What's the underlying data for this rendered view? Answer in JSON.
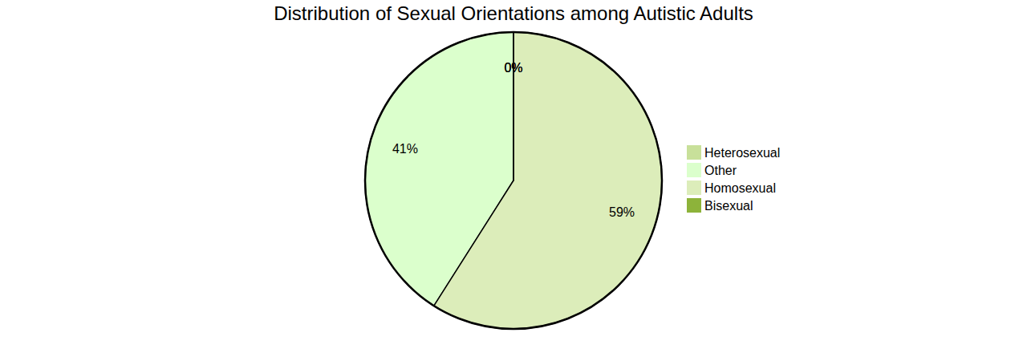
{
  "chart_data": {
    "type": "pie",
    "title": "Distribution of Sexual Orientations among Autistic Adults",
    "categories": [
      "Heterosexual",
      "Other",
      "Homosexual",
      "Bisexual"
    ],
    "values": [
      0,
      41,
      59,
      0
    ],
    "value_labels": [
      "0%",
      "41%",
      "59%",
      "0%"
    ],
    "colors": [
      "#c8e09a",
      "#dbffcc",
      "#dcedba",
      "#8db33a"
    ],
    "data_labels": true,
    "legend": "right"
  }
}
